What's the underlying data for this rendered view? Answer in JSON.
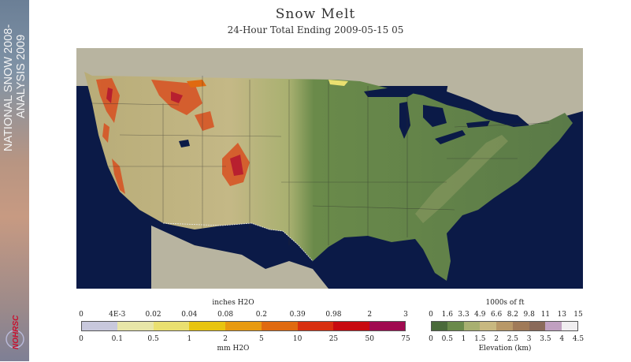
{
  "title": "Snow Melt",
  "subtitle": "24-Hour Total Ending 2009-05-15 05",
  "sidebar": {
    "banner_line1": "NATIONAL SNOW 2008-",
    "banner_line2": "ANALYSIS 2009",
    "logo_text": "NOHRSC"
  },
  "melt_legend": {
    "unit_top": "inches H2O",
    "unit_bottom": "mm H2O",
    "inch_ticks": [
      "0",
      "4E-3",
      "0.02",
      "0.04",
      "0.08",
      "0.2",
      "0.39",
      "0.98",
      "2",
      "3"
    ],
    "mm_ticks": [
      "0",
      "0.1",
      "0.5",
      "1",
      "2",
      "5",
      "10",
      "25",
      "50",
      "75"
    ],
    "colors": [
      "#c8c8dc",
      "#e8e6a8",
      "#eae070",
      "#e8c410",
      "#e89a10",
      "#e06a10",
      "#d83010",
      "#c80a10",
      "#a00a50"
    ]
  },
  "elevation_legend": {
    "unit_top": "1000s of ft",
    "unit_bottom": "Elevation (km)",
    "ft_ticks": [
      "0",
      "1.6",
      "3.3",
      "4.9",
      "6.6",
      "8.2",
      "9.8",
      "11",
      "13",
      "15"
    ],
    "km_ticks": [
      "0",
      "0.5",
      "1",
      "1.5",
      "2",
      "2.5",
      "3",
      "3.5",
      "4",
      "4.5"
    ],
    "colors": [
      "#4a6a3a",
      "#6a8a4a",
      "#a8b070",
      "#c8b880",
      "#b89868",
      "#a07a58",
      "#8a6a5a",
      "#c0a0c0",
      "#f0eef0"
    ]
  },
  "map": {
    "water_color": "#0b1a47",
    "lowland_color": "#5a7a48",
    "plains_color": "#a8b070",
    "highland_color": "#c8b880",
    "outside_land_color": "#b8b4a0",
    "melt_color": "#d85020"
  }
}
